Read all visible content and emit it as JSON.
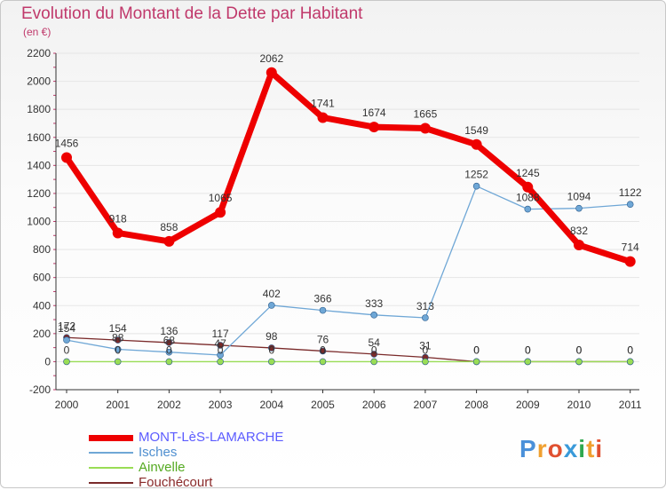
{
  "header": {
    "title": "Evolution du Montant de la Dette par Habitant",
    "subtitle": "(en €)"
  },
  "colors": {
    "title": "#c0396b",
    "axis": "#333333",
    "grid": "#e6e6e6"
  },
  "logo": {
    "text": "Proxiti",
    "letters": [
      "P",
      "r",
      "o",
      "x",
      "i",
      "t",
      "i"
    ],
    "letter_colors": [
      "#4a90d9",
      "#f0a030",
      "#e05030",
      "#3a9ad9",
      "#2fa84f",
      "#f0a030",
      "#e05030"
    ],
    "icon": "proxiti-logo"
  },
  "chart_data": {
    "type": "line",
    "title": "Evolution du Montant de la Dette par Habitant",
    "subtitle": "(en €)",
    "x": [
      "2000",
      "2001",
      "2002",
      "2003",
      "2004",
      "2005",
      "2006",
      "2007",
      "2008",
      "2009",
      "2010",
      "2011"
    ],
    "ylim": [
      -200,
      2200
    ],
    "yticks": [
      -200,
      0,
      200,
      400,
      600,
      800,
      1000,
      1200,
      1400,
      1600,
      1800,
      2000,
      2200
    ],
    "grid": true,
    "legend_position": "bottom-left",
    "series": [
      {
        "name": "MONT-LèS-LAMARCHE",
        "color": "#ee0000",
        "legend_color": "#5b5bff",
        "width": 7,
        "marker_r": 6,
        "values": [
          1456,
          918,
          858,
          1065,
          2062,
          1741,
          1674,
          1665,
          1549,
          1245,
          832,
          714
        ]
      },
      {
        "name": "Isches",
        "color": "#6fa7d6",
        "legend_color": "#4f8fd0",
        "width": 1.3,
        "marker_r": 3.5,
        "values": [
          154,
          88,
          68,
          47,
          402,
          366,
          333,
          313,
          1252,
          1088,
          1094,
          1122
        ]
      },
      {
        "name": "Ainvelle",
        "color": "#99dd55",
        "legend_color": "#55aa22",
        "width": 1.3,
        "marker_r": 3.5,
        "values": [
          0,
          0,
          0,
          0,
          0,
          0,
          0,
          0,
          0,
          0,
          0,
          0
        ]
      },
      {
        "name": "Fouchécourt",
        "color": "#7a2a2a",
        "legend_color": "#8a2a2a",
        "width": 1.3,
        "marker_r": 3.5,
        "values": [
          172,
          154,
          136,
          117,
          98,
          76,
          54,
          31,
          0,
          0,
          0,
          0
        ]
      }
    ]
  }
}
